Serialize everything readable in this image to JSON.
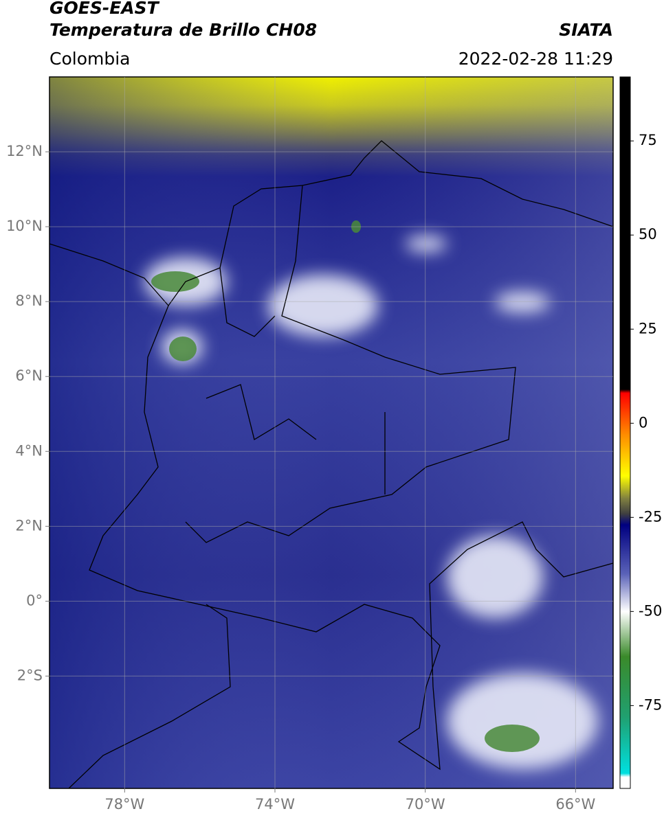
{
  "map": {
    "title": "GOES-EAST",
    "subtitle": "Temperatura de Brillo CH08",
    "source": "SIATA",
    "region": "Colombia",
    "datetime": "2022-02-28 11:29",
    "xlim": [
      -80,
      -65
    ],
    "ylim": [
      -5,
      14
    ],
    "xticks": [
      {
        "value": -78,
        "label": "78°W"
      },
      {
        "value": -74,
        "label": "74°W"
      },
      {
        "value": -70,
        "label": "70°W"
      },
      {
        "value": -66,
        "label": "66°W"
      }
    ],
    "yticks": [
      {
        "value": 12,
        "label": "12°N"
      },
      {
        "value": 10,
        "label": "10°N"
      },
      {
        "value": 8,
        "label": "8°N"
      },
      {
        "value": 6,
        "label": "6°N"
      },
      {
        "value": 4,
        "label": "4°N"
      },
      {
        "value": 2,
        "label": "2°N"
      },
      {
        "value": 0,
        "label": "0°"
      },
      {
        "value": -2,
        "label": "2°S"
      }
    ],
    "grid": true,
    "colorbar": {
      "clim": [
        -97,
        92
      ],
      "ticks": [
        75,
        50,
        25,
        0,
        -25,
        -50,
        -75
      ],
      "stops": [
        {
          "value": 92,
          "color": "#000000"
        },
        {
          "value": 9,
          "color": "#000000"
        },
        {
          "value": 8,
          "color": "#ff0000"
        },
        {
          "value": -3,
          "color": "#ff8c00"
        },
        {
          "value": -14,
          "color": "#ffff00"
        },
        {
          "value": -20,
          "color": "#808040"
        },
        {
          "value": -24,
          "color": "#404040"
        },
        {
          "value": -27,
          "color": "#000080"
        },
        {
          "value": -40,
          "color": "#5a62b8"
        },
        {
          "value": -50,
          "color": "#ffffff"
        },
        {
          "value": -62,
          "color": "#3a8a2a"
        },
        {
          "value": -78,
          "color": "#20a070"
        },
        {
          "value": -93,
          "color": "#00e0e0"
        },
        {
          "value": -94,
          "color": "#ffffff"
        },
        {
          "value": -97,
          "color": "#ffffff"
        }
      ]
    }
  }
}
